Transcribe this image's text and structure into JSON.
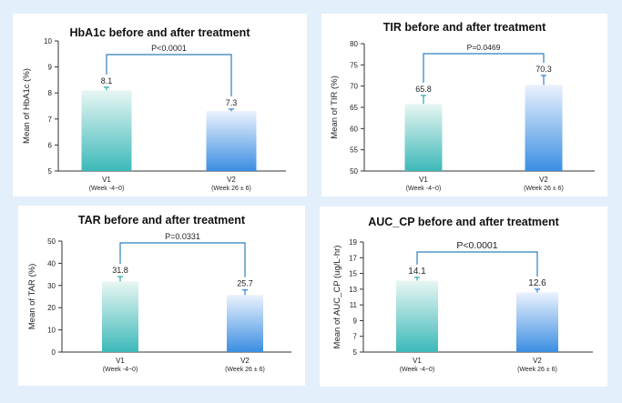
{
  "chart_data": [
    {
      "type": "bar",
      "title": "HbA1c before and after treatment",
      "ylabel": "Mean of HbA1c (%)",
      "ylim": [
        5,
        10
      ],
      "yticks": [
        5,
        6,
        7,
        8,
        9,
        10
      ],
      "categories": [
        {
          "label": "V1",
          "sub": "(Week -4~0)"
        },
        {
          "label": "V2",
          "sub": "(Week 26 ± 6)"
        }
      ],
      "values": [
        8.1,
        7.3
      ],
      "value_labels": [
        "8.1",
        "7.3"
      ],
      "error": [
        0.12,
        0.08
      ],
      "pvalue": "P<0.0001"
    },
    {
      "type": "bar",
      "title": "TIR before and after treatment",
      "ylabel": "Mean of TIR (%)",
      "ylim": [
        50,
        80
      ],
      "yticks": [
        50,
        55,
        60,
        65,
        70,
        75,
        80
      ],
      "categories": [
        {
          "label": "V1",
          "sub": "(Week -4~0)"
        },
        {
          "label": "V2",
          "sub": "(Week 26 ± 6)"
        }
      ],
      "values": [
        65.8,
        70.3
      ],
      "value_labels": [
        "65.8",
        "70.3"
      ],
      "error": [
        2.0,
        2.2
      ],
      "pvalue": "P=0.0469"
    },
    {
      "type": "bar",
      "title": "TAR before and after treatment",
      "ylabel": "Mean of TAR (%)",
      "ylim": [
        0,
        50
      ],
      "yticks": [
        0,
        10,
        20,
        30,
        40,
        50
      ],
      "categories": [
        {
          "label": "V1",
          "sub": "(Week -4~0)"
        },
        {
          "label": "V2",
          "sub": "(Week 26 ± 6)"
        }
      ],
      "values": [
        31.8,
        25.7
      ],
      "value_labels": [
        "31.8",
        "25.7"
      ],
      "error": [
        2.2,
        2.3
      ],
      "pvalue": "P=0.0331"
    },
    {
      "type": "bar",
      "title": "AUC_CP before and after treatment",
      "ylabel": "Mean of  AUC_CP (ug/L·hr)",
      "ylim": [
        5,
        19
      ],
      "yticks": [
        5,
        7,
        9,
        11,
        13,
        15,
        17,
        19
      ],
      "categories": [
        {
          "label": "V1",
          "sub": "(Week -4~0)"
        },
        {
          "label": "V2",
          "sub": "(Week 26 ± 6)"
        }
      ],
      "values": [
        14.1,
        12.6
      ],
      "value_labels": [
        "14.1",
        "12.6"
      ],
      "error": [
        0.4,
        0.4
      ],
      "pvalue": "P<0.0001"
    }
  ]
}
